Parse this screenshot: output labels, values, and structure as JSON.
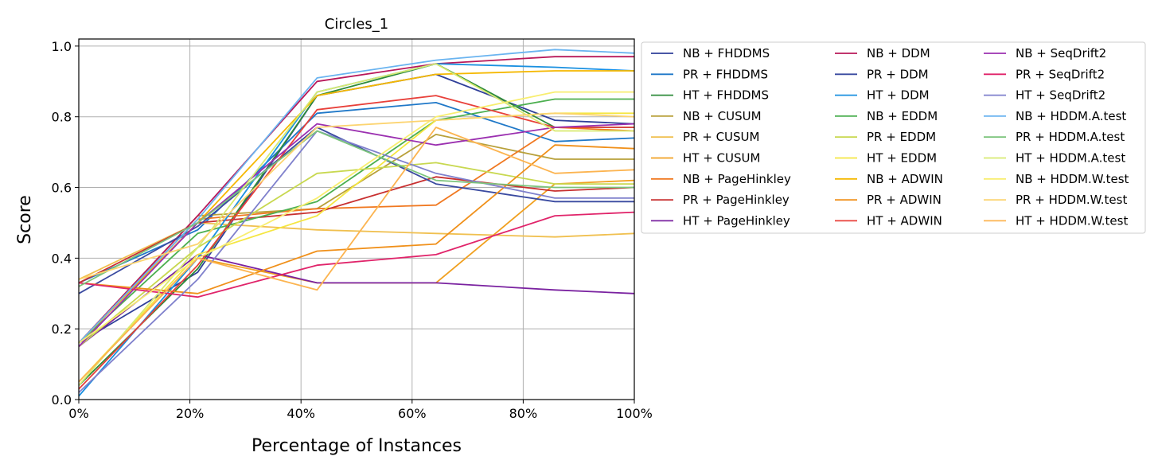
{
  "chart_data": {
    "type": "line",
    "title": "Circles_1",
    "xlabel": "Percentage of Instances",
    "ylabel": "Score",
    "xlim": [
      0,
      100
    ],
    "ylim": [
      0,
      1.02
    ],
    "x_ticks": [
      "0%",
      "20%",
      "40%",
      "60%",
      "80%",
      "100%"
    ],
    "y_ticks": [
      "0.0",
      "0.2",
      "0.4",
      "0.6",
      "0.8",
      "1.0"
    ],
    "grid": true,
    "legend_placement": "outside-right",
    "x": [
      0,
      21.4,
      42.9,
      64.3,
      85.7,
      100
    ],
    "series": [
      {
        "name": "NB + FHDDMS",
        "color": "#2f3f99",
        "values": [
          0.16,
          0.36,
          0.86,
          0.92,
          0.79,
          0.78
        ]
      },
      {
        "name": "PR + FHDDMS",
        "color": "#1f78c8",
        "values": [
          0.33,
          0.48,
          0.81,
          0.84,
          0.73,
          0.74
        ]
      },
      {
        "name": "HT + FHDDMS",
        "color": "#2e8b3a",
        "values": [
          0.04,
          0.37,
          0.86,
          0.95,
          0.77,
          0.77
        ]
      },
      {
        "name": "NB + CUSUM",
        "color": "#b8a03a",
        "values": [
          0.16,
          0.52,
          0.54,
          0.75,
          0.68,
          0.68
        ]
      },
      {
        "name": "PR + CUSUM",
        "color": "#f0c050",
        "values": [
          0.34,
          0.5,
          0.48,
          0.47,
          0.46,
          0.47
        ]
      },
      {
        "name": "HT + CUSUM",
        "color": "#f0a020",
        "values": [
          0.05,
          0.4,
          0.33,
          0.33,
          0.61,
          0.62
        ]
      },
      {
        "name": "NB + PageHinkley",
        "color": "#f07820",
        "values": [
          0.16,
          0.51,
          0.54,
          0.55,
          0.77,
          0.76
        ]
      },
      {
        "name": "PR + PageHinkley",
        "color": "#c83030",
        "values": [
          0.33,
          0.5,
          0.53,
          0.63,
          0.59,
          0.6
        ]
      },
      {
        "name": "HT + PageHinkley",
        "color": "#7a22a0",
        "values": [
          0.15,
          0.41,
          0.33,
          0.33,
          0.31,
          0.3
        ]
      },
      {
        "name": "NB + DDM",
        "color": "#b8185a",
        "values": [
          0.16,
          0.52,
          0.9,
          0.95,
          0.97,
          0.97
        ]
      },
      {
        "name": "PR + DDM",
        "color": "#3a4aa0",
        "values": [
          0.3,
          0.49,
          0.77,
          0.61,
          0.56,
          0.56
        ]
      },
      {
        "name": "HT + DDM",
        "color": "#1a90e0",
        "values": [
          0.01,
          0.4,
          0.87,
          0.95,
          0.94,
          0.93
        ]
      },
      {
        "name": "NB + EDDM",
        "color": "#4caf50",
        "values": [
          0.16,
          0.47,
          0.56,
          0.79,
          0.85,
          0.85
        ]
      },
      {
        "name": "PR + EDDM",
        "color": "#c8d850",
        "values": [
          0.15,
          0.43,
          0.64,
          0.67,
          0.61,
          0.61
        ]
      },
      {
        "name": "HT + EDDM",
        "color": "#f5e642",
        "values": [
          0.05,
          0.41,
          0.52,
          0.79,
          0.81,
          0.81
        ]
      },
      {
        "name": "NB + ADWIN",
        "color": "#f5b800",
        "values": [
          0.16,
          0.5,
          0.86,
          0.92,
          0.93,
          0.93
        ]
      },
      {
        "name": "PR + ADWIN",
        "color": "#f0901a",
        "values": [
          0.33,
          0.3,
          0.42,
          0.44,
          0.72,
          0.71
        ]
      },
      {
        "name": "HT + ADWIN",
        "color": "#e8403a",
        "values": [
          0.03,
          0.38,
          0.82,
          0.86,
          0.77,
          0.77
        ]
      },
      {
        "name": "NB + SeqDrift2",
        "color": "#9b30b0",
        "values": [
          0.15,
          0.5,
          0.78,
          0.72,
          0.77,
          0.78
        ]
      },
      {
        "name": "PR + SeqDrift2",
        "color": "#e0246a",
        "values": [
          0.33,
          0.29,
          0.38,
          0.41,
          0.52,
          0.53
        ]
      },
      {
        "name": "HT + SeqDrift2",
        "color": "#7f80cc",
        "values": [
          0.02,
          0.34,
          0.76,
          0.64,
          0.57,
          0.57
        ]
      },
      {
        "name": "NB + HDDM.A.test",
        "color": "#6ab4f0",
        "values": [
          0.16,
          0.51,
          0.91,
          0.96,
          0.99,
          0.98
        ]
      },
      {
        "name": "PR + HDDM.A.test",
        "color": "#7cc47c",
        "values": [
          0.32,
          0.5,
          0.76,
          0.62,
          0.6,
          0.6
        ]
      },
      {
        "name": "HT + HDDM.A.test",
        "color": "#d8ea70",
        "values": [
          0.04,
          0.43,
          0.87,
          0.95,
          0.76,
          0.76
        ]
      },
      {
        "name": "NB + HDDM.W.test",
        "color": "#f8ee70",
        "values": [
          0.16,
          0.4,
          0.57,
          0.8,
          0.87,
          0.87
        ]
      },
      {
        "name": "PR + HDDM.W.test",
        "color": "#fcd470",
        "values": [
          0.34,
          0.44,
          0.77,
          0.79,
          0.81,
          0.8
        ]
      },
      {
        "name": "HT + HDDM.W.test",
        "color": "#fcb450",
        "values": [
          0.05,
          0.4,
          0.31,
          0.77,
          0.64,
          0.65
        ]
      }
    ]
  }
}
